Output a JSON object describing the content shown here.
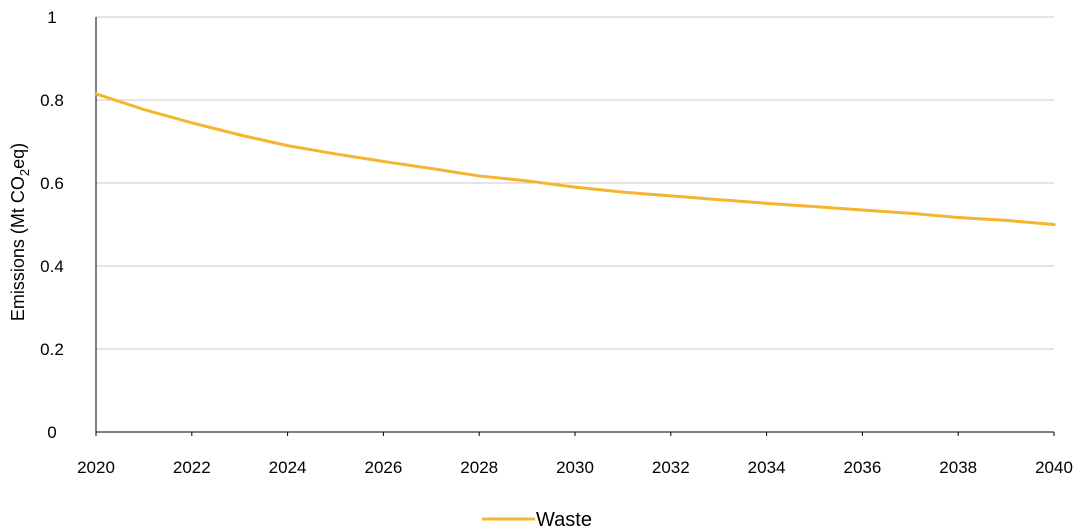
{
  "chart_data": {
    "type": "line",
    "x": [
      2020,
      2021,
      2022,
      2023,
      2024,
      2025,
      2026,
      2027,
      2028,
      2029,
      2030,
      2031,
      2032,
      2033,
      2034,
      2035,
      2036,
      2037,
      2038,
      2039,
      2040
    ],
    "series": [
      {
        "name": "Waste",
        "color": "#f5b52e",
        "values": [
          0.815,
          0.777,
          0.745,
          0.716,
          0.69,
          0.67,
          0.652,
          0.635,
          0.617,
          0.605,
          0.59,
          0.578,
          0.569,
          0.56,
          0.551,
          0.543,
          0.535,
          0.527,
          0.517,
          0.51,
          0.5
        ]
      }
    ],
    "ylabel": {
      "prefix": "Emissions (Mt CO",
      "subscript": "2",
      "suffix": "eq)"
    },
    "xlabel": "",
    "title": "",
    "xlim": [
      2020,
      2040
    ],
    "ylim": [
      0,
      1
    ],
    "xticks": [
      "2020",
      "2022",
      "2024",
      "2026",
      "2028",
      "2030",
      "2032",
      "2034",
      "2036",
      "2038",
      "2040"
    ],
    "yticks": [
      "0",
      "0.2",
      "0.4",
      "0.6",
      "0.8",
      "1"
    ],
    "grid": "horizontal",
    "legend_position": "bottom-center",
    "gridline_color": "#c8c8c8",
    "axis_color": "#000000"
  }
}
